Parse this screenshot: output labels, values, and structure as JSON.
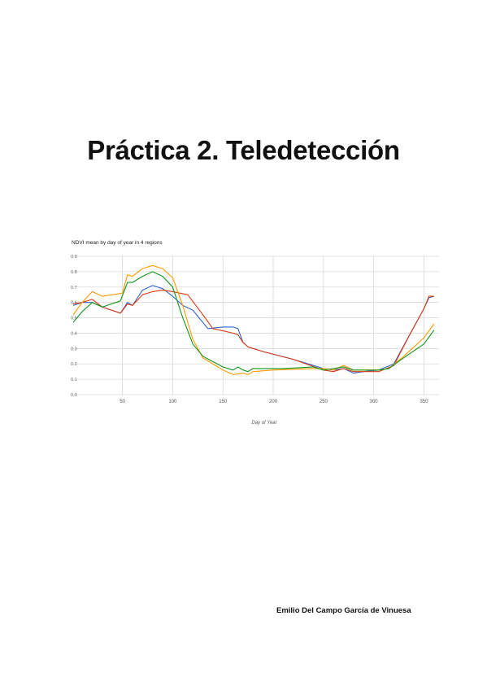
{
  "document": {
    "title": "Práctica 2. Teledetección",
    "author": "Emilio Del Campo García de Vinuesa"
  },
  "chart_data": {
    "type": "line",
    "title": "NDVI mean by day of year in 4 regions",
    "xlabel": "Day of Year",
    "ylabel": "",
    "xlim": [
      1,
      365
    ],
    "ylim": [
      0,
      0.9
    ],
    "xticks": [
      50,
      100,
      150,
      200,
      250,
      300,
      350
    ],
    "yticks": [
      0,
      0.1,
      0.2,
      0.3,
      0.4,
      0.5,
      0.6,
      0.7,
      0.8,
      0.9
    ],
    "grid": true,
    "legend": "none",
    "series": [
      {
        "color": "#3366cc",
        "points": [
          [
            1,
            0.58
          ],
          [
            10,
            0.6
          ],
          [
            20,
            0.6
          ],
          [
            30,
            0.57
          ],
          [
            48,
            0.53
          ],
          [
            55,
            0.6
          ],
          [
            60,
            0.58
          ],
          [
            70,
            0.68
          ],
          [
            80,
            0.71
          ],
          [
            90,
            0.69
          ],
          [
            100,
            0.64
          ],
          [
            110,
            0.58
          ],
          [
            120,
            0.55
          ],
          [
            135,
            0.43
          ],
          [
            150,
            0.44
          ],
          [
            160,
            0.44
          ],
          [
            165,
            0.43
          ],
          [
            170,
            0.34
          ],
          [
            175,
            0.31
          ],
          [
            190,
            0.28
          ],
          [
            220,
            0.23
          ],
          [
            250,
            0.17
          ],
          [
            260,
            0.16
          ],
          [
            270,
            0.17
          ],
          [
            280,
            0.14
          ],
          [
            290,
            0.15
          ],
          [
            305,
            0.16
          ],
          [
            320,
            0.2
          ],
          [
            335,
            0.38
          ],
          [
            350,
            0.56
          ],
          [
            355,
            0.63
          ],
          [
            360,
            0.64
          ]
        ]
      },
      {
        "color": "#dc3912",
        "points": [
          [
            1,
            0.59
          ],
          [
            10,
            0.6
          ],
          [
            20,
            0.62
          ],
          [
            30,
            0.57
          ],
          [
            48,
            0.53
          ],
          [
            55,
            0.59
          ],
          [
            60,
            0.58
          ],
          [
            70,
            0.65
          ],
          [
            80,
            0.67
          ],
          [
            90,
            0.68
          ],
          [
            100,
            0.67
          ],
          [
            115,
            0.65
          ],
          [
            130,
            0.52
          ],
          [
            140,
            0.43
          ],
          [
            160,
            0.4
          ],
          [
            165,
            0.39
          ],
          [
            170,
            0.34
          ],
          [
            175,
            0.31
          ],
          [
            190,
            0.28
          ],
          [
            220,
            0.23
          ],
          [
            250,
            0.16
          ],
          [
            260,
            0.15
          ],
          [
            270,
            0.17
          ],
          [
            280,
            0.15
          ],
          [
            290,
            0.15
          ],
          [
            305,
            0.15
          ],
          [
            320,
            0.19
          ],
          [
            335,
            0.38
          ],
          [
            350,
            0.56
          ],
          [
            355,
            0.64
          ],
          [
            360,
            0.64
          ]
        ]
      },
      {
        "color": "#ff9900",
        "points": [
          [
            1,
            0.52
          ],
          [
            10,
            0.6
          ],
          [
            20,
            0.67
          ],
          [
            30,
            0.64
          ],
          [
            50,
            0.66
          ],
          [
            55,
            0.78
          ],
          [
            60,
            0.77
          ],
          [
            70,
            0.82
          ],
          [
            80,
            0.84
          ],
          [
            90,
            0.82
          ],
          [
            100,
            0.76
          ],
          [
            110,
            0.58
          ],
          [
            120,
            0.36
          ],
          [
            130,
            0.24
          ],
          [
            150,
            0.16
          ],
          [
            160,
            0.13
          ],
          [
            170,
            0.14
          ],
          [
            175,
            0.13
          ],
          [
            180,
            0.15
          ],
          [
            200,
            0.16
          ],
          [
            240,
            0.17
          ],
          [
            250,
            0.17
          ],
          [
            260,
            0.16
          ],
          [
            270,
            0.19
          ],
          [
            280,
            0.16
          ],
          [
            290,
            0.16
          ],
          [
            305,
            0.16
          ],
          [
            315,
            0.17
          ],
          [
            330,
            0.25
          ],
          [
            350,
            0.37
          ],
          [
            360,
            0.46
          ]
        ]
      },
      {
        "color": "#109618",
        "points": [
          [
            1,
            0.47
          ],
          [
            10,
            0.54
          ],
          [
            20,
            0.6
          ],
          [
            30,
            0.57
          ],
          [
            48,
            0.61
          ],
          [
            55,
            0.73
          ],
          [
            60,
            0.73
          ],
          [
            70,
            0.77
          ],
          [
            80,
            0.8
          ],
          [
            90,
            0.77
          ],
          [
            100,
            0.7
          ],
          [
            110,
            0.5
          ],
          [
            120,
            0.33
          ],
          [
            130,
            0.25
          ],
          [
            150,
            0.18
          ],
          [
            160,
            0.16
          ],
          [
            165,
            0.18
          ],
          [
            170,
            0.16
          ],
          [
            175,
            0.15
          ],
          [
            180,
            0.17
          ],
          [
            210,
            0.17
          ],
          [
            240,
            0.18
          ],
          [
            250,
            0.16
          ],
          [
            270,
            0.18
          ],
          [
            280,
            0.16
          ],
          [
            290,
            0.16
          ],
          [
            305,
            0.16
          ],
          [
            315,
            0.17
          ],
          [
            330,
            0.24
          ],
          [
            350,
            0.33
          ],
          [
            360,
            0.42
          ]
        ]
      }
    ]
  }
}
